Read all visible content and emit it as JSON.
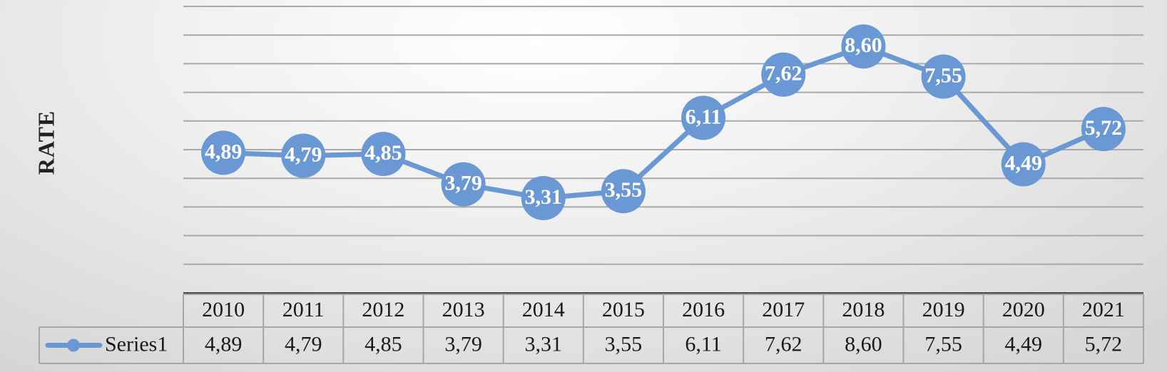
{
  "chart_data": {
    "type": "line",
    "ylabel": "RATE",
    "categories": [
      "2010",
      "2011",
      "2012",
      "2013",
      "2014",
      "2015",
      "2016",
      "2017",
      "2018",
      "2019",
      "2020",
      "2021"
    ],
    "series": [
      {
        "name": "Series1",
        "values": [
          4.89,
          4.79,
          4.85,
          3.79,
          3.31,
          3.55,
          6.11,
          7.62,
          8.6,
          7.55,
          4.49,
          5.72
        ],
        "labels": [
          "4,89",
          "4,79",
          "4,85",
          "3,79",
          "3,31",
          "3,55",
          "6,11",
          "7,62",
          "8,60",
          "7,55",
          "4,49",
          "5,72"
        ],
        "color": "#6a98d4"
      }
    ],
    "ylim": [
      0,
      10
    ],
    "grid": true,
    "data_table": true,
    "legend": "data-table-row"
  }
}
